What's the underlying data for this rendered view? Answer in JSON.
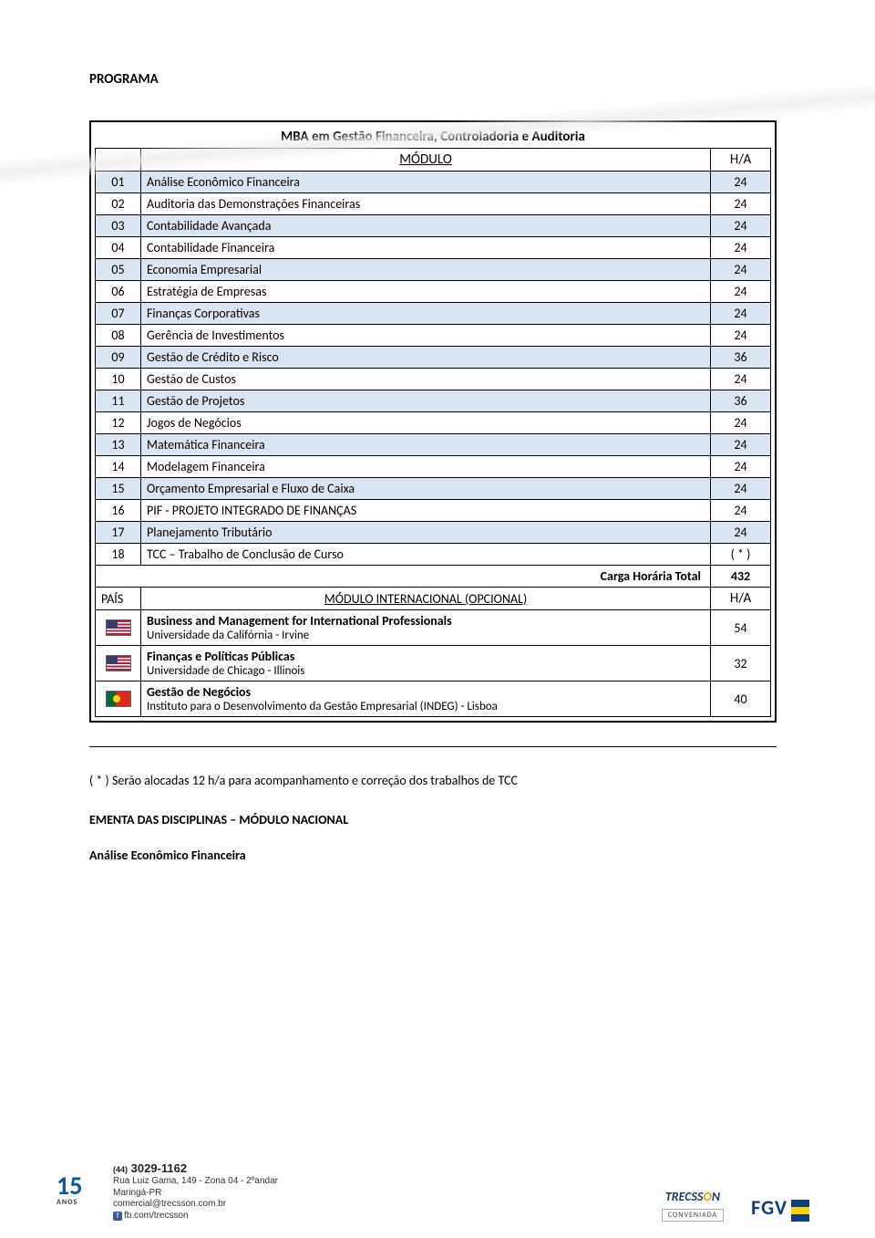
{
  "section_title": "PROGRAMA",
  "course_title": "MBA em Gestão Financeira, Controladoria e Auditoria",
  "headers": {
    "modulo": "MÓDULO",
    "ha": "H/A",
    "pais": "PAÍS",
    "int_mod": "MÓDULO INTERNACIONAL  (OPCIONAL)"
  },
  "rows": [
    {
      "n": "01",
      "name": "Análise Econômico Financeira",
      "ha": "24"
    },
    {
      "n": "02",
      "name": "Auditoria das Demonstrações Financeiras",
      "ha": "24"
    },
    {
      "n": "03",
      "name": "Contabilidade Avançada",
      "ha": "24"
    },
    {
      "n": "04",
      "name": "Contabilidade Financeira",
      "ha": "24"
    },
    {
      "n": "05",
      "name": "Economia Empresarial",
      "ha": "24"
    },
    {
      "n": "06",
      "name": "Estratégia de Empresas",
      "ha": "24"
    },
    {
      "n": "07",
      "name": "Finanças Corporativas",
      "ha": "24"
    },
    {
      "n": "08",
      "name": "Gerência de Investimentos",
      "ha": "24"
    },
    {
      "n": "09",
      "name": "Gestão de Crédito e Risco",
      "ha": "36"
    },
    {
      "n": "10",
      "name": "Gestão de Custos",
      "ha": "24"
    },
    {
      "n": "11",
      "name": "Gestão de Projetos",
      "ha": "36"
    },
    {
      "n": "12",
      "name": "Jogos de Negócios",
      "ha": "24"
    },
    {
      "n": "13",
      "name": "Matemática Financeira",
      "ha": "24"
    },
    {
      "n": "14",
      "name": "Modelagem Financeira",
      "ha": "24"
    },
    {
      "n": "15",
      "name": "Orçamento Empresarial e Fluxo de Caixa",
      "ha": "24"
    },
    {
      "n": "16",
      "name": "PIF - PROJETO INTEGRADO DE FINANÇAS",
      "ha": "24"
    },
    {
      "n": "17",
      "name": "Planejamento Tributário",
      "ha": "24"
    },
    {
      "n": "18",
      "name": "TCC – Trabalho de Conclusão de Curso",
      "ha": "( * )"
    }
  ],
  "total": {
    "label": "Carga Horária Total",
    "value": "432"
  },
  "international": [
    {
      "flag": "us",
      "title": "Business and Management for International Professionals",
      "sub": "Universidade da Califórnia - Irvine",
      "ha": "54"
    },
    {
      "flag": "us",
      "title": "Finanças e Políticas Públicas",
      "sub": "Universidade de Chicago - Illinois",
      "ha": "32"
    },
    {
      "flag": "pt",
      "title": "Gestão de Negócios",
      "sub": "Instituto para o Desenvolvimento da Gestão Empresarial (INDEG) - Lisboa",
      "ha": "40"
    }
  ],
  "footnote": "( * ) Serão alocadas 12 h/a para acompanhamento e correção dos trabalhos de TCC",
  "sub1": "EMENTA DAS DISCIPLINAS – MÓDULO NACIONAL",
  "sub2": "Análise Econômico Financeira",
  "footer": {
    "years_num": "15",
    "years_label": "ANOS",
    "phone_prefix": "(44)",
    "phone": "3029-1162",
    "addr": "Rua Luiz Gama, 149 - Zona 04 - 2ºandar",
    "city": "Maringá-PR",
    "email": "comercial@trecsson.com.br",
    "fb": "fb.com/trecsson",
    "trecsson": "TRECSS",
    "trecsson_o": "O",
    "trecsson_n": "N",
    "conveniada": "CONVENIADA",
    "fgv": "FGV"
  },
  "style": {
    "stripe_color": "#dbe5f1",
    "border_color": "#000000",
    "page_bg": "#ffffff",
    "font_size_body": 14,
    "font_size_title": 15
  }
}
